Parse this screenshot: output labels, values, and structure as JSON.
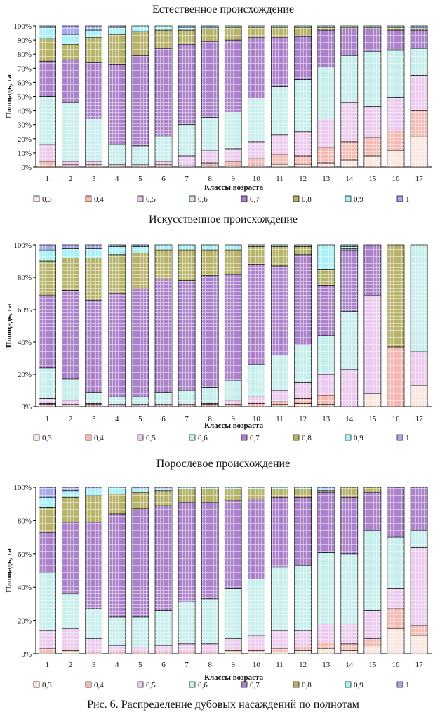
{
  "figure_caption": "Рис. 6. Распределение дубовых насаждений по полнотам",
  "legend_labels": [
    "0,3",
    "0,4",
    "0,5",
    "0,6",
    "0,7",
    "0,8",
    "0,9",
    "1"
  ],
  "colors": [
    "#fbe6df",
    "#f5b7b0",
    "#ecc9ee",
    "#c5eeec",
    "#ab81cb",
    "#b7b46a",
    "#a9f1f6",
    "#a7a9ee"
  ],
  "chart_data": [
    {
      "type": "bar",
      "stacked": "percent",
      "title": "Естественное происхождение",
      "xlabel": "Классы возраста",
      "ylabel": "Площадь, га",
      "ylim": [
        0,
        100
      ],
      "yticks": [
        "0%",
        "10%",
        "20%",
        "30%",
        "40%",
        "50%",
        "60%",
        "70%",
        "80%",
        "90%",
        "100%"
      ],
      "categories": [
        "1",
        "2",
        "3",
        "4",
        "5",
        "6",
        "7",
        "8",
        "9",
        "10",
        "11",
        "12",
        "13",
        "14",
        "15",
        "16",
        "17"
      ],
      "series": [
        {
          "name": "0,3",
          "values": [
            0,
            1,
            1,
            1,
            1,
            1,
            1,
            1,
            1,
            1,
            2,
            2,
            3,
            5,
            8,
            12,
            22
          ]
        },
        {
          "name": "0,4",
          "values": [
            4,
            1,
            1,
            0,
            0,
            1,
            0,
            2,
            3,
            5,
            7,
            6,
            11,
            13,
            13,
            14,
            18
          ]
        },
        {
          "name": "0,5",
          "values": [
            12,
            2,
            2,
            1,
            1,
            2,
            7,
            9,
            9,
            12,
            14,
            17,
            20,
            28,
            22,
            24,
            25
          ]
        },
        {
          "name": "0,6",
          "values": [
            34,
            42,
            30,
            14,
            13,
            18,
            22,
            23,
            26,
            31,
            34,
            37,
            37,
            33,
            39,
            34,
            19
          ]
        },
        {
          "name": "0,7",
          "values": [
            25,
            30,
            40,
            57,
            64,
            62,
            57,
            54,
            51,
            43,
            35,
            31,
            26,
            19,
            16,
            14,
            13
          ]
        },
        {
          "name": "0,8",
          "values": [
            16,
            11,
            18,
            21,
            17,
            13,
            10,
            9,
            9,
            7,
            7,
            6,
            2,
            1,
            1,
            2,
            1
          ]
        },
        {
          "name": "0,9",
          "values": [
            8,
            7,
            5,
            5,
            4,
            3,
            2,
            1,
            1,
            1,
            1,
            1,
            1,
            1,
            1,
            1,
            1
          ]
        },
        {
          "name": "1",
          "values": [
            1,
            6,
            3,
            1,
            0,
            0,
            1,
            1,
            0,
            0,
            0,
            0,
            0,
            0,
            0,
            0,
            1
          ]
        }
      ]
    },
    {
      "type": "bar",
      "stacked": "percent",
      "title": "Искусственное происхождение",
      "xlabel": "Классы возраста",
      "ylabel": "Площадь, га",
      "ylim": [
        0,
        100
      ],
      "yticks": [
        "0%",
        "20%",
        "40%",
        "60%",
        "80%",
        "100%"
      ],
      "categories": [
        "1",
        "2",
        "3",
        "4",
        "5",
        "6",
        "7",
        "8",
        "9",
        "10",
        "11",
        "12",
        "13",
        "14",
        "15",
        "16",
        "17"
      ],
      "series": [
        {
          "name": "0,3",
          "values": [
            1,
            1,
            0,
            0,
            0,
            0,
            0,
            0,
            0,
            0,
            1,
            2,
            1,
            0,
            8,
            0,
            13
          ]
        },
        {
          "name": "0,4",
          "values": [
            1,
            0,
            1,
            0,
            0,
            1,
            1,
            1,
            1,
            2,
            2,
            3,
            6,
            0,
            0,
            37,
            0
          ]
        },
        {
          "name": "0,5",
          "values": [
            3,
            3,
            1,
            1,
            1,
            0,
            0,
            1,
            3,
            4,
            7,
            10,
            13,
            23,
            61,
            0,
            21
          ]
        },
        {
          "name": "0,6",
          "values": [
            19,
            13,
            7,
            5,
            5,
            8,
            9,
            10,
            12,
            20,
            22,
            23,
            24,
            36,
            0,
            0,
            66
          ]
        },
        {
          "name": "0,7",
          "values": [
            45,
            55,
            57,
            64,
            67,
            70,
            68,
            69,
            66,
            62,
            55,
            56,
            31,
            38,
            31,
            0,
            0
          ]
        },
        {
          "name": "0,8",
          "values": [
            21,
            20,
            26,
            24,
            22,
            18,
            19,
            16,
            15,
            11,
            12,
            5,
            10,
            1,
            0,
            63,
            0
          ]
        },
        {
          "name": "0,9",
          "values": [
            7,
            6,
            6,
            5,
            4,
            3,
            3,
            3,
            3,
            1,
            1,
            1,
            15,
            1,
            0,
            0,
            0
          ]
        },
        {
          "name": "1",
          "values": [
            3,
            2,
            2,
            1,
            1,
            0,
            0,
            0,
            0,
            0,
            0,
            0,
            0,
            1,
            0,
            0,
            0
          ]
        }
      ]
    },
    {
      "type": "bar",
      "stacked": "percent",
      "title": "Порослевое происхождение",
      "xlabel": "Классы возраста",
      "ylabel": "Площадь, га",
      "ylim": [
        0,
        100
      ],
      "yticks": [
        "0%",
        "20%",
        "40%",
        "60%",
        "80%",
        "100%"
      ],
      "categories": [
        "1",
        "2",
        "3",
        "4",
        "5",
        "6",
        "7",
        "8",
        "9",
        "10",
        "11",
        "12",
        "13",
        "14",
        "15",
        "16",
        "17"
      ],
      "series": [
        {
          "name": "0,3",
          "values": [
            0,
            1,
            0,
            0,
            0,
            0,
            0,
            0,
            1,
            1,
            1,
            2,
            3,
            2,
            4,
            15,
            11
          ]
        },
        {
          "name": "0,4",
          "values": [
            3,
            1,
            1,
            1,
            1,
            1,
            1,
            1,
            1,
            1,
            2,
            2,
            4,
            4,
            5,
            12,
            6
          ]
        },
        {
          "name": "0,5",
          "values": [
            11,
            13,
            8,
            4,
            3,
            4,
            5,
            5,
            7,
            9,
            11,
            10,
            11,
            12,
            17,
            12,
            47
          ]
        },
        {
          "name": "0,6",
          "values": [
            35,
            21,
            18,
            17,
            18,
            21,
            25,
            27,
            30,
            34,
            38,
            39,
            43,
            42,
            48,
            31,
            10
          ]
        },
        {
          "name": "0,7",
          "values": [
            24,
            43,
            52,
            62,
            65,
            63,
            60,
            58,
            53,
            48,
            42,
            41,
            36,
            34,
            23,
            30,
            26
          ]
        },
        {
          "name": "0,8",
          "values": [
            15,
            15,
            16,
            12,
            10,
            9,
            8,
            8,
            7,
            6,
            5,
            5,
            1,
            6,
            3,
            0,
            0
          ]
        },
        {
          "name": "0,9",
          "values": [
            6,
            4,
            4,
            4,
            2,
            1,
            1,
            1,
            1,
            1,
            1,
            1,
            1,
            0,
            0,
            0,
            0
          ]
        },
        {
          "name": "1",
          "values": [
            6,
            2,
            1,
            0,
            1,
            1,
            0,
            0,
            0,
            0,
            0,
            0,
            1,
            0,
            0,
            0,
            0
          ]
        }
      ]
    }
  ]
}
